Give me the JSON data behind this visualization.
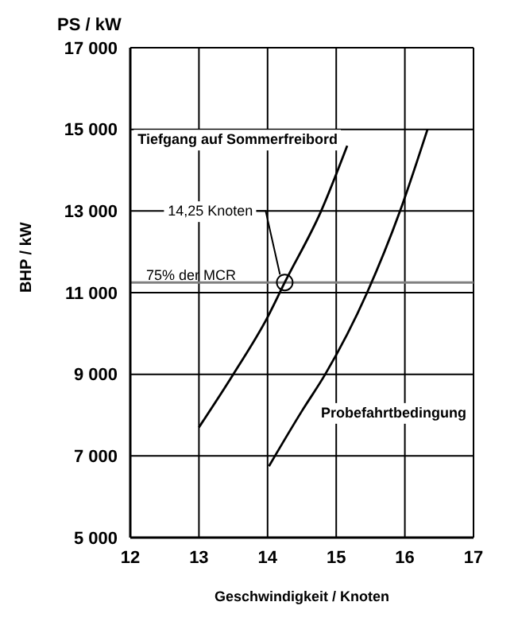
{
  "chart_data": {
    "type": "line",
    "xlabel": "Geschwindigkeit / Knoten",
    "ylabel": "BHP / kW",
    "annotations": [
      "PS / kW",
      {
        "text": "14,25 Knoten",
        "x": 14.25,
        "y": 11250
      }
    ],
    "series": [
      {
        "name": "Tiefgang auf Sommerfreibord",
        "color": "#000000",
        "x": [
          13,
          13.5,
          14,
          14.25,
          14.78,
          15.16
        ],
        "values": [
          7700,
          9000,
          10400,
          11250,
          13000,
          14600
        ]
      },
      {
        "name": "Probefahrtbedingung",
        "color": "#000000",
        "x": [
          14.02,
          14.5,
          14.84,
          15.45,
          15.93,
          16.33
        ],
        "values": [
          6750,
          8100,
          9000,
          11000,
          13000,
          15000
        ]
      }
    ],
    "xlim": [
      12,
      17
    ],
    "xticks": [
      12,
      13,
      14,
      15,
      16,
      17
    ],
    "ylim": [
      5000,
      17000
    ],
    "yticks": [
      {
        "value": 5000,
        "label": "5 000"
      },
      {
        "value": 7000,
        "label": "7 000"
      },
      {
        "value": 9000,
        "label": "9 000"
      },
      {
        "value": 11000,
        "label": "11 000"
      },
      {
        "value": 13000,
        "label": "13 000"
      },
      {
        "value": 15000,
        "label": "15 000"
      },
      {
        "value": 17000,
        "label": "17 000"
      }
    ],
    "ref_lines": [
      {
        "axis": "y",
        "value": 11250,
        "label": "75% der MCR",
        "color": "#808080"
      }
    ],
    "grid": true,
    "legend": false,
    "marker": "none",
    "line_style": "solid"
  }
}
